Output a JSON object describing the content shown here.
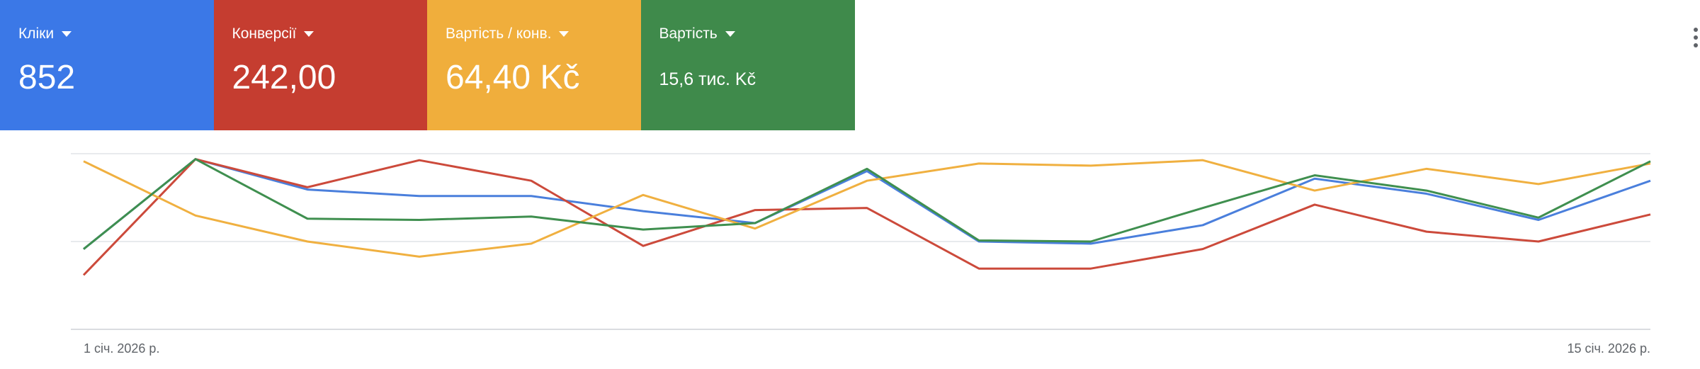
{
  "chart_data": {
    "type": "line",
    "categories": [
      "1 січ. 2026 р.",
      null,
      null,
      null,
      null,
      null,
      null,
      null,
      null,
      null,
      null,
      null,
      null,
      null,
      "15 січ. 2026 р."
    ],
    "ylim": [
      0,
      100
    ],
    "yticks": [
      0,
      50,
      100
    ],
    "grid": true,
    "series": [
      {
        "name": "Кліки",
        "total": "852",
        "card_color": "#3b78e7",
        "color": "#4a7fdc",
        "values": [
          45.7,
          96.9,
          79.6,
          75.9,
          75.9,
          67.3,
          60.5,
          90.1,
          50,
          48.8,
          59.3,
          85.8,
          77.2,
          62.3,
          84.6
        ]
      },
      {
        "name": "Конверсії",
        "total": "242,00",
        "card_color": "#c53d30",
        "color": "#cc4a3b",
        "values": [
          30.9,
          96.9,
          80.9,
          96.3,
          84.6,
          47.5,
          67.9,
          69.1,
          34.6,
          34.6,
          45.7,
          71,
          55.6,
          50,
          65.4
        ]
      },
      {
        "name": "Вартість / конв.",
        "total": "64,40 Kč",
        "card_color": "#f0ae3c",
        "color": "#f0b040",
        "values": [
          95.7,
          64.8,
          50,
          41.4,
          48.8,
          76.5,
          57.4,
          84.6,
          94.4,
          93.2,
          96.3,
          79,
          91.4,
          82.7,
          94.4
        ]
      },
      {
        "name": "Вартість",
        "total": "15,6 тис. Kč",
        "card_color": "#3f8a4b",
        "color": "#3f8f4f",
        "values": [
          45.7,
          96.9,
          63,
          62.3,
          64.2,
          56.8,
          60.5,
          91.4,
          50.6,
          50,
          69.1,
          87.7,
          79,
          63.6,
          95.7
        ]
      }
    ]
  }
}
